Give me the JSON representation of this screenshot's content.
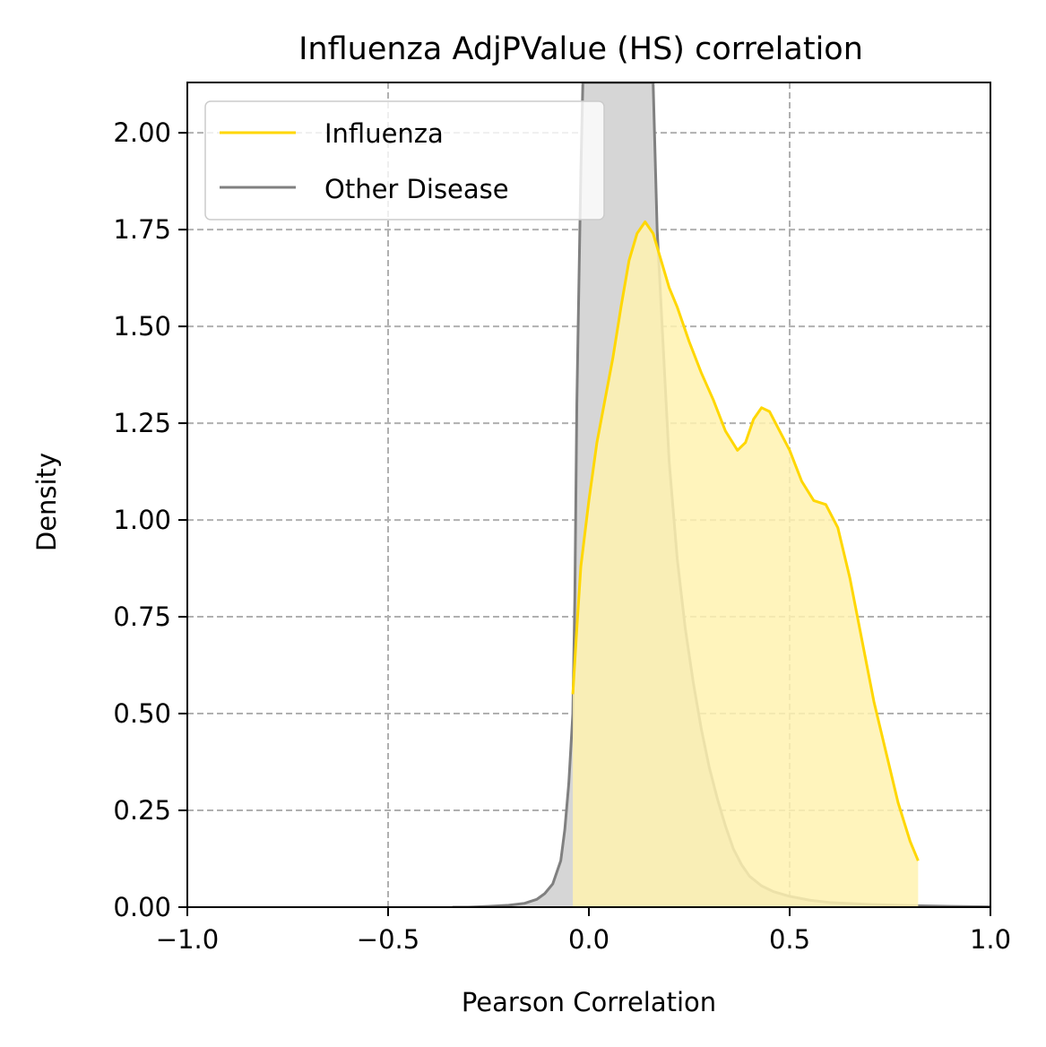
{
  "chart_data": {
    "type": "area",
    "title": "Influenza AdjPValue (HS) correlation",
    "xlabel": "Pearson Correlation",
    "ylabel": "Density",
    "xlim": [
      -1.0,
      1.0
    ],
    "ylim": [
      0.0,
      2.13
    ],
    "xticks": [
      -1.0,
      -0.5,
      0.0,
      0.5,
      1.0
    ],
    "xtick_labels": [
      "−1.0",
      "−0.5",
      "0.0",
      "0.5",
      "1.0"
    ],
    "yticks": [
      0.0,
      0.25,
      0.5,
      0.75,
      1.0,
      1.25,
      1.5,
      1.75,
      2.0
    ],
    "ytick_labels": [
      "0.00",
      "0.25",
      "0.50",
      "0.75",
      "1.00",
      "1.25",
      "1.50",
      "1.75",
      "2.00"
    ],
    "grid": true,
    "legend_position": "top-left",
    "series": [
      {
        "name": "Influenza",
        "color": "#FFD700",
        "fill": "#FFF2B0",
        "x": [
          -0.04,
          -0.03,
          -0.02,
          0.0,
          0.02,
          0.04,
          0.06,
          0.08,
          0.1,
          0.12,
          0.14,
          0.16,
          0.18,
          0.2,
          0.22,
          0.25,
          0.28,
          0.31,
          0.34,
          0.37,
          0.39,
          0.41,
          0.43,
          0.45,
          0.47,
          0.5,
          0.53,
          0.56,
          0.59,
          0.62,
          0.65,
          0.68,
          0.71,
          0.74,
          0.77,
          0.8,
          0.82
        ],
        "y": [
          0.55,
          0.72,
          0.88,
          1.05,
          1.2,
          1.31,
          1.42,
          1.55,
          1.67,
          1.74,
          1.77,
          1.74,
          1.67,
          1.6,
          1.55,
          1.46,
          1.38,
          1.31,
          1.23,
          1.18,
          1.2,
          1.26,
          1.29,
          1.28,
          1.24,
          1.18,
          1.1,
          1.05,
          1.04,
          0.98,
          0.85,
          0.69,
          0.53,
          0.4,
          0.27,
          0.17,
          0.12
        ]
      },
      {
        "name": "Other Disease",
        "color": "#808080",
        "fill": "#D6D6D6",
        "x": [
          -0.34,
          -0.3,
          -0.25,
          -0.2,
          -0.16,
          -0.13,
          -0.11,
          -0.09,
          -0.07,
          -0.06,
          -0.05,
          -0.04,
          -0.035,
          -0.03,
          -0.02,
          -0.015,
          0.16,
          0.17,
          0.18,
          0.19,
          0.2,
          0.22,
          0.24,
          0.26,
          0.28,
          0.3,
          0.32,
          0.34,
          0.36,
          0.38,
          0.4,
          0.43,
          0.46,
          0.5,
          0.55,
          0.6,
          0.7,
          0.8,
          0.9,
          1.0
        ],
        "y": [
          0.0,
          0.0,
          0.002,
          0.005,
          0.01,
          0.02,
          0.035,
          0.06,
          0.12,
          0.2,
          0.32,
          0.5,
          0.8,
          1.3,
          1.9,
          2.13,
          2.13,
          1.75,
          1.55,
          1.35,
          1.15,
          0.9,
          0.72,
          0.58,
          0.46,
          0.36,
          0.28,
          0.21,
          0.15,
          0.11,
          0.08,
          0.055,
          0.04,
          0.028,
          0.018,
          0.012,
          0.007,
          0.004,
          0.002,
          0.001
        ]
      }
    ]
  }
}
